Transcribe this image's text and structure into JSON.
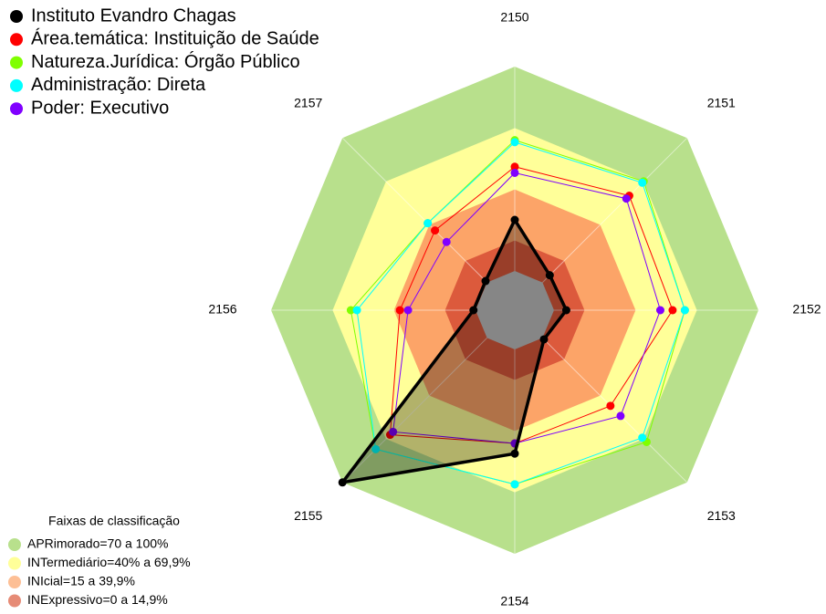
{
  "chart_data": {
    "type": "radar",
    "categories": [
      "2150",
      "2151",
      "2152",
      "2153",
      "2154",
      "2155",
      "2156",
      "2157"
    ],
    "rlim": [
      0,
      100
    ],
    "series": [
      {
        "name": "Instituto Evandro Chagas",
        "color": "#000000",
        "values": [
          25,
          5,
          6,
          1,
          51,
          100,
          1,
          1
        ]
      },
      {
        "name": "Área.temática: Instituição de Saúde",
        "color": "#ff0000",
        "values": [
          51,
          60,
          58,
          47,
          46,
          67,
          37,
          36
        ]
      },
      {
        "name": "Natureza.Jurídica: Órgão Público",
        "color": "#80ff00",
        "values": [
          64,
          70,
          64,
          72,
          66,
          77,
          61,
          41
        ]
      },
      {
        "name": "Administração: Direta",
        "color": "#00ffff",
        "values": [
          63,
          69,
          64,
          69,
          66,
          77,
          58,
          41
        ]
      },
      {
        "name": "Poder: Executivo",
        "color": "#8000ff",
        "values": [
          48,
          58,
          52,
          54,
          46,
          65,
          33,
          28
        ]
      }
    ],
    "bands_title": "Faixas de classificação",
    "bands": [
      {
        "name": "APRimorado=70 a 100%",
        "color": "#b8e08c",
        "range": [
          70,
          100
        ]
      },
      {
        "name": "INTermediário=40% a 69,9%",
        "color": "#ffff99",
        "range": [
          40,
          69.9
        ]
      },
      {
        "name": "INIcial=15 a 39,9%",
        "color": "#fca468",
        "range": [
          15,
          39.9
        ]
      },
      {
        "name": "INExpressivo=0 a 14,9%",
        "color": "#dc5a3c",
        "range": [
          0,
          14.9
        ]
      }
    ]
  }
}
